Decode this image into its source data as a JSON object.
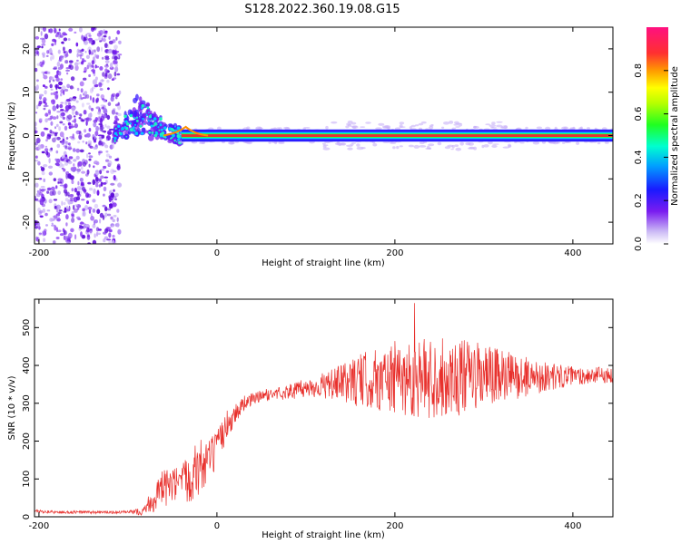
{
  "title": "S128.2022.360.19.08.G15",
  "colors": {
    "snr_line": "#e8302c",
    "core_band": "#e83030",
    "speckle": "#7a1cf0"
  },
  "chart_data": [
    {
      "type": "heatmap",
      "title": "S128.2022.360.19.08.G15",
      "xlabel": "Height of straight line (km)",
      "ylabel": "Frequency (Hz)",
      "xlim": [
        -205,
        445
      ],
      "ylim": [
        -25,
        25
      ],
      "x_ticks": [
        -200,
        0,
        200,
        400
      ],
      "y_ticks": [
        20,
        10,
        0,
        -10,
        -20
      ],
      "colorbar": {
        "label": "Normalized spectral amplitude",
        "range": [
          0,
          1
        ],
        "ticks": [
          "0.0",
          "0.2",
          "0.4",
          "0.6",
          "0.8"
        ],
        "colormap": "rainbow (white-purple-blue-cyan-green-yellow-orange-red-magenta)"
      },
      "features": {
        "noise_region_x": [
          -205,
          -115
        ],
        "transition_region_x": [
          -115,
          -40
        ],
        "stable_line_x": [
          -40,
          445
        ],
        "stable_line_frequency": 0,
        "excursion_peak": {
          "x": -85,
          "frequency": 8
        },
        "small_bump": {
          "x": -35,
          "frequency": 2
        }
      }
    },
    {
      "type": "line",
      "xlabel": "Height of straight line (km)",
      "ylabel": "SNR (10 * v/v)",
      "xlim": [
        -205,
        445
      ],
      "ylim": [
        0,
        575
      ],
      "x_ticks": [
        -200,
        0,
        200,
        400
      ],
      "y_ticks": [
        0,
        100,
        200,
        300,
        400,
        500
      ],
      "x": [
        -205,
        -180,
        -150,
        -120,
        -100,
        -85,
        -70,
        -60,
        -50,
        -40,
        -30,
        -20,
        -10,
        0,
        10,
        20,
        30,
        50,
        80,
        100,
        130,
        160,
        200,
        250,
        300,
        350,
        400,
        445
      ],
      "y": [
        15,
        12,
        12,
        12,
        12,
        14,
        50,
        75,
        80,
        80,
        110,
        130,
        145,
        175,
        240,
        270,
        300,
        320,
        330,
        340,
        350,
        360,
        365,
        368,
        370,
        370,
        372,
        375
      ],
      "noise_amplitude": [
        4,
        4,
        4,
        4,
        4,
        10,
        40,
        50,
        50,
        55,
        70,
        80,
        60,
        50,
        40,
        30,
        20,
        15,
        20,
        25,
        40,
        70,
        100,
        110,
        90,
        50,
        25,
        20
      ],
      "peak": {
        "x": 222,
        "y": 565
      }
    }
  ]
}
